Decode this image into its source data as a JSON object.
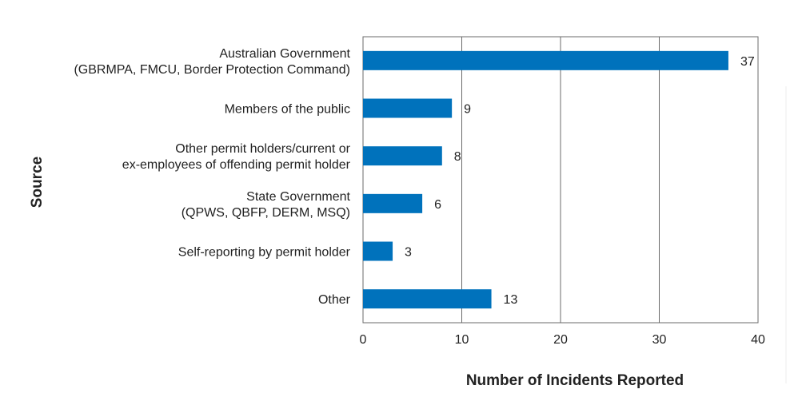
{
  "chart_data": {
    "type": "bar",
    "orientation": "horizontal",
    "categories": [
      [
        "Australian Government",
        "(GBRMPA, FMCU, Border Protection Command)"
      ],
      [
        "Members of the public"
      ],
      [
        "Other permit holders/current or",
        "ex-employees of offending permit holder"
      ],
      [
        "State Government",
        "(QPWS, QBFP, DERM, MSQ)"
      ],
      [
        "Self-reporting by permit holder"
      ],
      [
        "Other"
      ]
    ],
    "values": [
      37,
      9,
      8,
      6,
      3,
      13
    ],
    "value_labels": [
      "37",
      "9",
      "8",
      "6",
      "3",
      "13"
    ],
    "xlabel": "Number of Incidents Reported",
    "ylabel": "Source",
    "xlim": [
      0,
      40
    ],
    "xticks": [
      0,
      10,
      20,
      30,
      40
    ],
    "xtick_labels": [
      "0",
      "10",
      "20",
      "30",
      "40"
    ],
    "grid": "vertical",
    "bar_color": "#0072bc"
  }
}
